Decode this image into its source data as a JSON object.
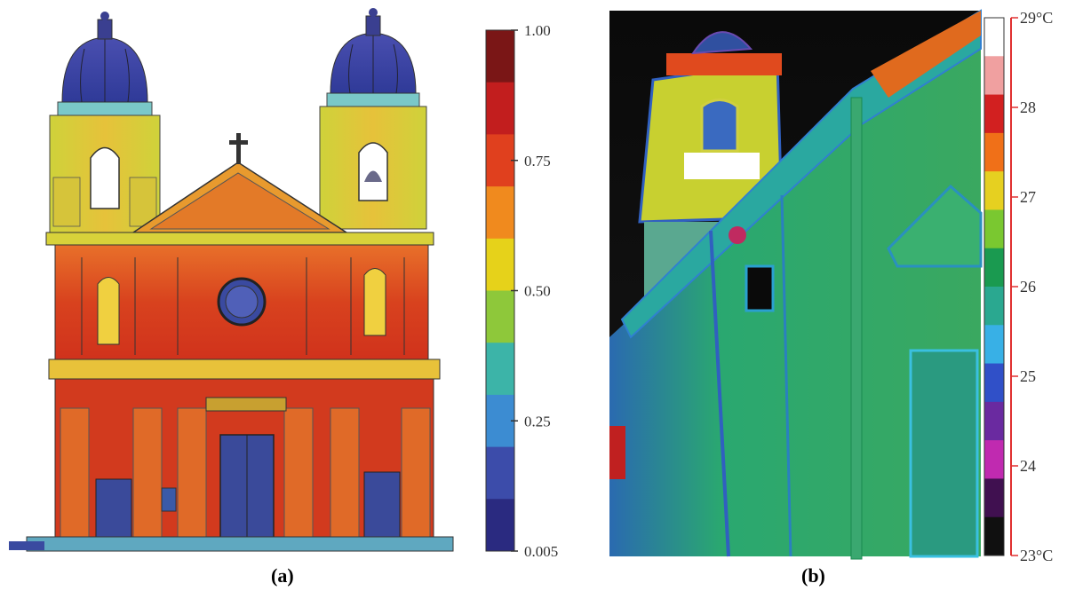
{
  "panel_a": {
    "caption": "(a)",
    "colorbar": {
      "ticks": [
        "1.00",
        "0.75",
        "0.50",
        "0.25",
        "0.005"
      ],
      "colors": [
        "#7a1616",
        "#c21e1e",
        "#e0401e",
        "#f08a1e",
        "#e6d21a",
        "#8ec83a",
        "#3cb4a8",
        "#3c8cd2",
        "#3c4caa",
        "#2a2a80"
      ]
    }
  },
  "panel_b": {
    "caption": "(b)",
    "colorbar": {
      "ticks": [
        "29°C",
        "28",
        "27",
        "26",
        "25",
        "24",
        "23°C"
      ],
      "colors": [
        "#ffffff",
        "#f0a0a0",
        "#d22020",
        "#f07018",
        "#e6d020",
        "#7ac830",
        "#1a9a50",
        "#2aa890",
        "#38b0e6",
        "#3050c8",
        "#6a2aa0",
        "#c02ab0",
        "#401050",
        "#101010"
      ]
    }
  }
}
